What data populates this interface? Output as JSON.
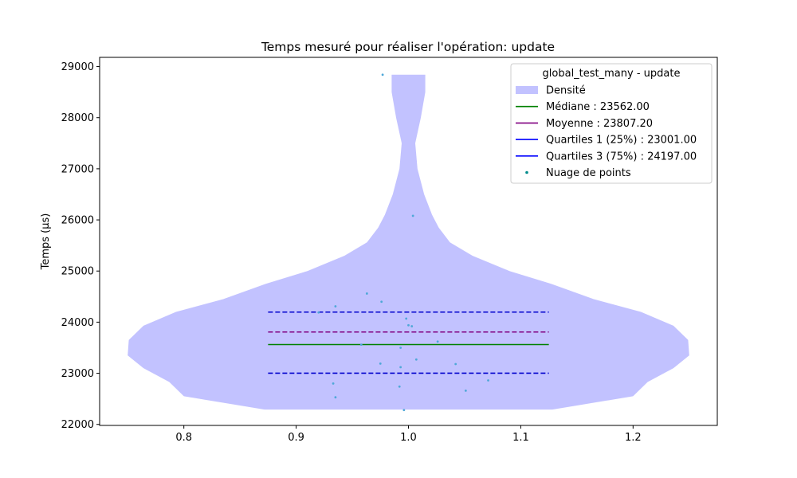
{
  "chart_data": {
    "type": "violin",
    "title": "Temps mesuré pour réaliser l'opération: update",
    "xlabel": "",
    "ylabel": "Temps (µs)",
    "xlim": [
      0.725,
      1.275
    ],
    "ylim": [
      21980,
      29180
    ],
    "xticks": [
      0.8,
      0.9,
      1.0,
      1.1,
      1.2
    ],
    "xtick_labels": [
      "0.8",
      "0.9",
      "1.0",
      "1.1",
      "1.2"
    ],
    "yticks": [
      22000,
      23000,
      24000,
      25000,
      26000,
      27000,
      28000,
      29000
    ],
    "ytick_labels": [
      "22000",
      "23000",
      "24000",
      "25000",
      "26000",
      "27000",
      "28000",
      "29000"
    ],
    "grid": false,
    "legend": {
      "title": "global_test_many - update",
      "placement": "top-right",
      "entries": [
        {
          "label": "Densité",
          "kind": "patch",
          "color": "#c2c2ff"
        },
        {
          "label": "Médiane : 23562.00",
          "kind": "line",
          "color": "#008000",
          "dash": false
        },
        {
          "label": "Moyenne : 23807.20",
          "kind": "line",
          "color": "#800080",
          "dash": false
        },
        {
          "label": "Quartiles 1 (25%) : 23001.00",
          "kind": "line",
          "color": "#0000ff",
          "dash": false
        },
        {
          "label": "Quartiles 3 (75%) : 24197.00",
          "kind": "line",
          "color": "#0000ff",
          "dash": false
        },
        {
          "label": "Nuage de points",
          "kind": "point",
          "color": "#008b8b"
        }
      ]
    },
    "violin": {
      "center": 1.0,
      "fill_color": "#c2c2ff",
      "profile": [
        {
          "y": 22290,
          "w": 0.128
        },
        {
          "y": 22550,
          "w": 0.2
        },
        {
          "y": 22830,
          "w": 0.213
        },
        {
          "y": 23100,
          "w": 0.236
        },
        {
          "y": 23350,
          "w": 0.25
        },
        {
          "y": 23650,
          "w": 0.249
        },
        {
          "y": 23930,
          "w": 0.236
        },
        {
          "y": 24200,
          "w": 0.207
        },
        {
          "y": 24450,
          "w": 0.165
        },
        {
          "y": 24750,
          "w": 0.127
        },
        {
          "y": 25000,
          "w": 0.09
        },
        {
          "y": 25300,
          "w": 0.057
        },
        {
          "y": 25560,
          "w": 0.037
        },
        {
          "y": 25850,
          "w": 0.027
        },
        {
          "y": 26100,
          "w": 0.021
        },
        {
          "y": 26500,
          "w": 0.014
        },
        {
          "y": 27000,
          "w": 0.008
        },
        {
          "y": 27500,
          "w": 0.006
        },
        {
          "y": 28000,
          "w": 0.011
        },
        {
          "y": 28500,
          "w": 0.015
        },
        {
          "y": 28840,
          "w": 0.015
        }
      ]
    },
    "stat_lines": [
      {
        "name": "q3",
        "y": 24197,
        "x_range": [
          0.875,
          1.125
        ],
        "color": "#0000cd",
        "dashed": true
      },
      {
        "name": "mean",
        "y": 23807.2,
        "x_range": [
          0.875,
          1.125
        ],
        "color": "#800080",
        "dashed": true
      },
      {
        "name": "median",
        "y": 23562,
        "x_range": [
          0.875,
          1.125
        ],
        "color": "#008000",
        "dashed": false
      },
      {
        "name": "q1",
        "y": 23001,
        "x_range": [
          0.875,
          1.125
        ],
        "color": "#0000cd",
        "dashed": true
      }
    ],
    "points": [
      {
        "x": 0.977,
        "y": 28840
      },
      {
        "x": 1.004,
        "y": 26080
      },
      {
        "x": 0.963,
        "y": 24560
      },
      {
        "x": 0.976,
        "y": 24400
      },
      {
        "x": 0.935,
        "y": 24310
      },
      {
        "x": 0.92,
        "y": 24190
      },
      {
        "x": 0.998,
        "y": 24070
      },
      {
        "x": 1.0,
        "y": 23940
      },
      {
        "x": 1.003,
        "y": 23920
      },
      {
        "x": 1.026,
        "y": 23620
      },
      {
        "x": 0.958,
        "y": 23560
      },
      {
        "x": 0.993,
        "y": 23500
      },
      {
        "x": 1.007,
        "y": 23270
      },
      {
        "x": 0.975,
        "y": 23190
      },
      {
        "x": 1.042,
        "y": 23180
      },
      {
        "x": 0.993,
        "y": 23120
      },
      {
        "x": 1.071,
        "y": 22860
      },
      {
        "x": 0.933,
        "y": 22800
      },
      {
        "x": 0.992,
        "y": 22740
      },
      {
        "x": 1.051,
        "y": 22660
      },
      {
        "x": 0.935,
        "y": 22530
      },
      {
        "x": 0.996,
        "y": 22280
      }
    ],
    "point_color": "#4fa8d8"
  }
}
